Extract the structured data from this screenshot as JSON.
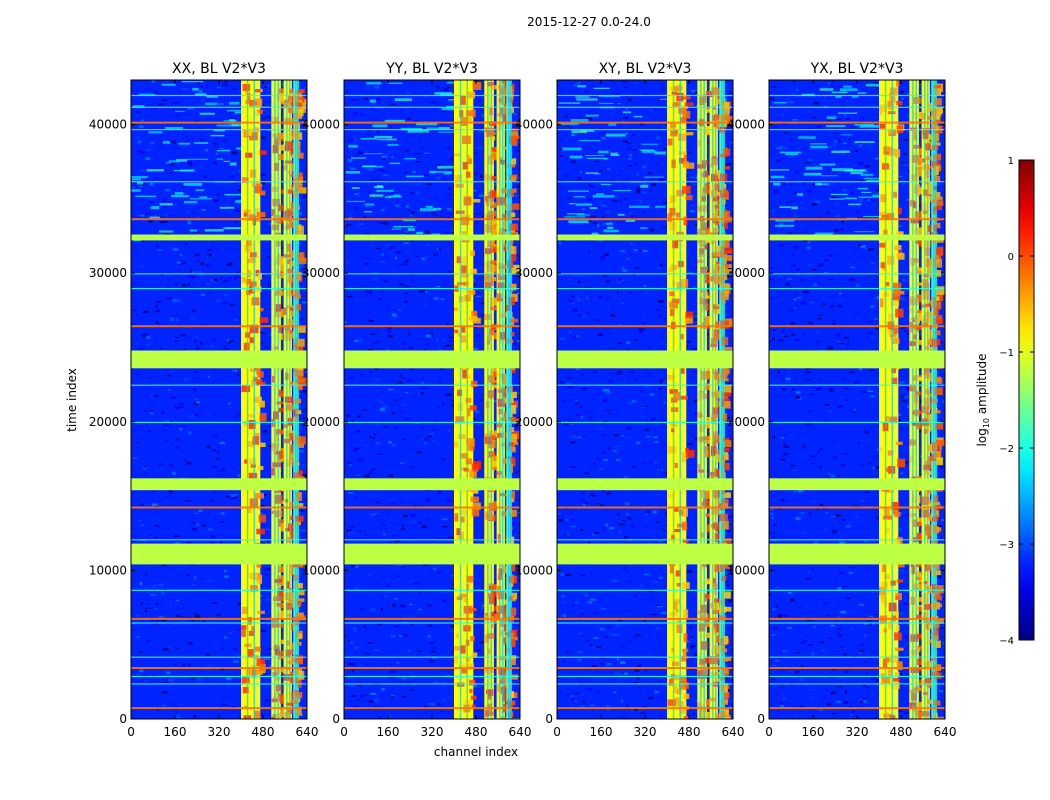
{
  "chart_data": {
    "type": "heatmap",
    "suptitle": "2015-12-27 0.0-24.0",
    "xlabel": "channel index",
    "ylabel": "time index",
    "xlim": [
      0,
      640
    ],
    "ylim": [
      0,
      43000
    ],
    "x_ticks": [
      0,
      160,
      320,
      480,
      640
    ],
    "y_ticks": [
      0,
      10000,
      20000,
      30000,
      40000
    ],
    "panels": [
      {
        "title": "XX, BL V2*V3",
        "pol": "XX"
      },
      {
        "title": "YY, BL V2*V3",
        "pol": "YY"
      },
      {
        "title": "XY, BL V2*V3",
        "pol": "XY"
      },
      {
        "title": "YX, BL V2*V3",
        "pol": "YX"
      }
    ],
    "colorbar": {
      "label": "log10 amplitude",
      "label_base": "log",
      "label_sub": "10",
      "label_rest": " amplitude",
      "range": [
        -4,
        1
      ],
      "ticks": [
        1,
        0,
        -1,
        -2,
        -3,
        -4
      ],
      "tick_labels": [
        "1",
        "0",
        "−1",
        "−2",
        "−3",
        "−4"
      ],
      "colormap": "jet"
    },
    "flagged_time_bands": [
      {
        "t0": 10400,
        "t1": 11800
      },
      {
        "t0": 15400,
        "t1": 16200
      },
      {
        "t0": 23600,
        "t1": 24800
      },
      {
        "t0": 32200,
        "t1": 32600
      }
    ],
    "bright_channel_bands": [
      {
        "c0": 400,
        "c1": 470
      },
      {
        "c0": 510,
        "c1": 545
      },
      {
        "c0": 555,
        "c1": 585
      },
      {
        "c0": 590,
        "c1": 610
      }
    ],
    "flag_value": -1.2,
    "background_value": -3.2,
    "bright_value": -0.9
  }
}
